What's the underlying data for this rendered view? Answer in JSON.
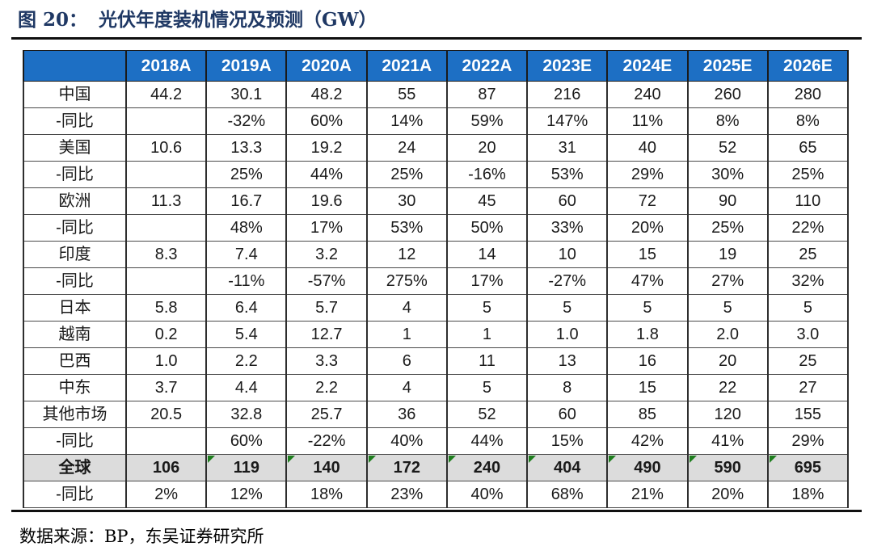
{
  "title": {
    "label": "图 20：",
    "text": "光伏年度装机情况及预测（GW）"
  },
  "source_text": "数据来源：BP，东吴证券研究所",
  "colors": {
    "header_blue": "#1D6FC4",
    "title_navy": "#1F3864",
    "total_row_gray": "#DCDCDC",
    "flag_green": "#1E7E1E"
  },
  "table": {
    "header": [
      "2018A",
      "2019A",
      "2020A",
      "2021A",
      "2022A",
      "2023E",
      "2024E",
      "2025E",
      "2026E"
    ],
    "rows": [
      {
        "label": "中国",
        "type": "country",
        "values": [
          "44.2",
          "30.1",
          "48.2",
          "55",
          "87",
          "216",
          "240",
          "260",
          "280"
        ]
      },
      {
        "label": "-同比",
        "type": "yoy",
        "values": [
          "",
          "-32%",
          "60%",
          "14%",
          "59%",
          "147%",
          "11%",
          "8%",
          "8%"
        ]
      },
      {
        "label": "美国",
        "type": "country",
        "values": [
          "10.6",
          "13.3",
          "19.2",
          "24",
          "20",
          "31",
          "40",
          "52",
          "65"
        ]
      },
      {
        "label": "-同比",
        "type": "yoy",
        "values": [
          "",
          "25%",
          "44%",
          "25%",
          "-16%",
          "53%",
          "29%",
          "30%",
          "25%"
        ]
      },
      {
        "label": "欧洲",
        "type": "country",
        "values": [
          "11.3",
          "16.7",
          "19.6",
          "30",
          "45",
          "60",
          "72",
          "90",
          "110"
        ]
      },
      {
        "label": "-同比",
        "type": "yoy",
        "values": [
          "",
          "48%",
          "17%",
          "53%",
          "50%",
          "33%",
          "20%",
          "25%",
          "22%"
        ]
      },
      {
        "label": "印度",
        "type": "country",
        "values": [
          "8.3",
          "7.4",
          "3.2",
          "12",
          "14",
          "10",
          "15",
          "19",
          "25"
        ]
      },
      {
        "label": "-同比",
        "type": "yoy",
        "values": [
          "",
          "-11%",
          "-57%",
          "275%",
          "17%",
          "-27%",
          "47%",
          "27%",
          "32%"
        ]
      },
      {
        "label": "日本",
        "type": "country",
        "values": [
          "5.8",
          "6.4",
          "5.7",
          "4",
          "5",
          "5",
          "5",
          "5",
          "5"
        ]
      },
      {
        "label": "越南",
        "type": "country",
        "values": [
          "0.2",
          "5.4",
          "12.7",
          "1",
          "1",
          "1.0",
          "1.8",
          "2.0",
          "3.0"
        ]
      },
      {
        "label": "巴西",
        "type": "country",
        "values": [
          "1.0",
          "2.2",
          "3.3",
          "6",
          "11",
          "13",
          "16",
          "20",
          "25"
        ]
      },
      {
        "label": "中东",
        "type": "country",
        "values": [
          "3.7",
          "4.4",
          "2.2",
          "4",
          "5",
          "8",
          "15",
          "22",
          "27"
        ]
      },
      {
        "label": "其他市场",
        "type": "country",
        "values": [
          "20.5",
          "32.8",
          "25.7",
          "36",
          "52",
          "60",
          "85",
          "120",
          "155"
        ]
      },
      {
        "label": "-同比",
        "type": "yoy",
        "values": [
          "",
          "60%",
          "-22%",
          "40%",
          "44%",
          "15%",
          "42%",
          "41%",
          "29%"
        ]
      },
      {
        "label": "全球",
        "type": "total",
        "values": [
          "106",
          "119",
          "140",
          "172",
          "240",
          "404",
          "490",
          "590",
          "695"
        ],
        "flags": [
          false,
          true,
          true,
          true,
          true,
          true,
          true,
          true,
          true
        ]
      },
      {
        "label": "-同比",
        "type": "yoy",
        "values": [
          "2%",
          "12%",
          "18%",
          "23%",
          "40%",
          "68%",
          "21%",
          "20%",
          "18%"
        ]
      }
    ]
  }
}
